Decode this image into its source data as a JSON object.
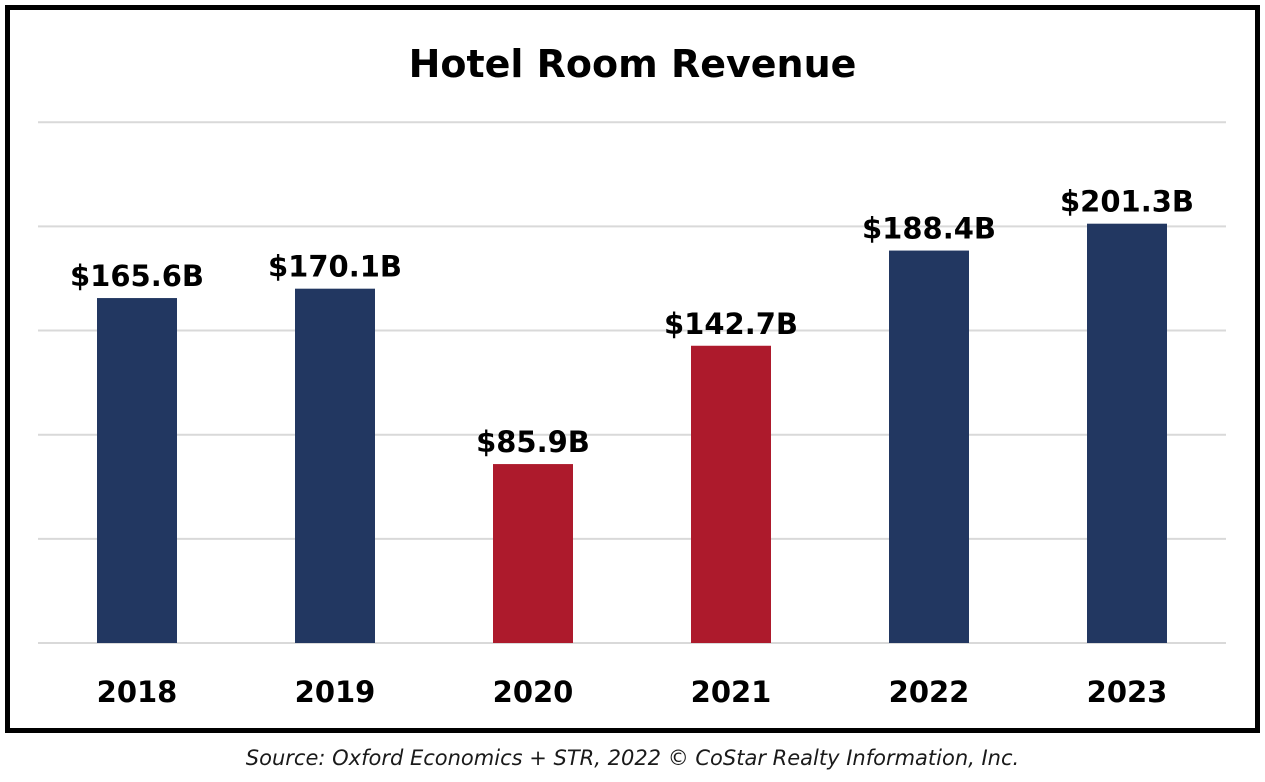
{
  "chart_data": {
    "type": "bar",
    "title": "Hotel Room Revenue",
    "categories": [
      "2018",
      "2019",
      "2020",
      "2021",
      "2022",
      "2023"
    ],
    "values": [
      165.6,
      170.1,
      85.9,
      142.7,
      188.4,
      201.3
    ],
    "data_labels": [
      "$165.6B",
      "$170.1B",
      "$85.9B",
      "$142.7B",
      "$188.4B",
      "$201.3B"
    ],
    "bar_colors": [
      "#223761",
      "#223761",
      "#AD1A2C",
      "#AD1A2C",
      "#223761",
      "#223761"
    ],
    "xlabel": "",
    "ylabel": "",
    "ylim": [
      0,
      250
    ],
    "grid": true,
    "legend": "none"
  },
  "source": "Source: Oxford Economics + STR, 2022 © CoStar Realty Information, Inc.",
  "colors": {
    "gridline": "#d9d9d9",
    "frame": "#000000",
    "label": "#000000"
  }
}
